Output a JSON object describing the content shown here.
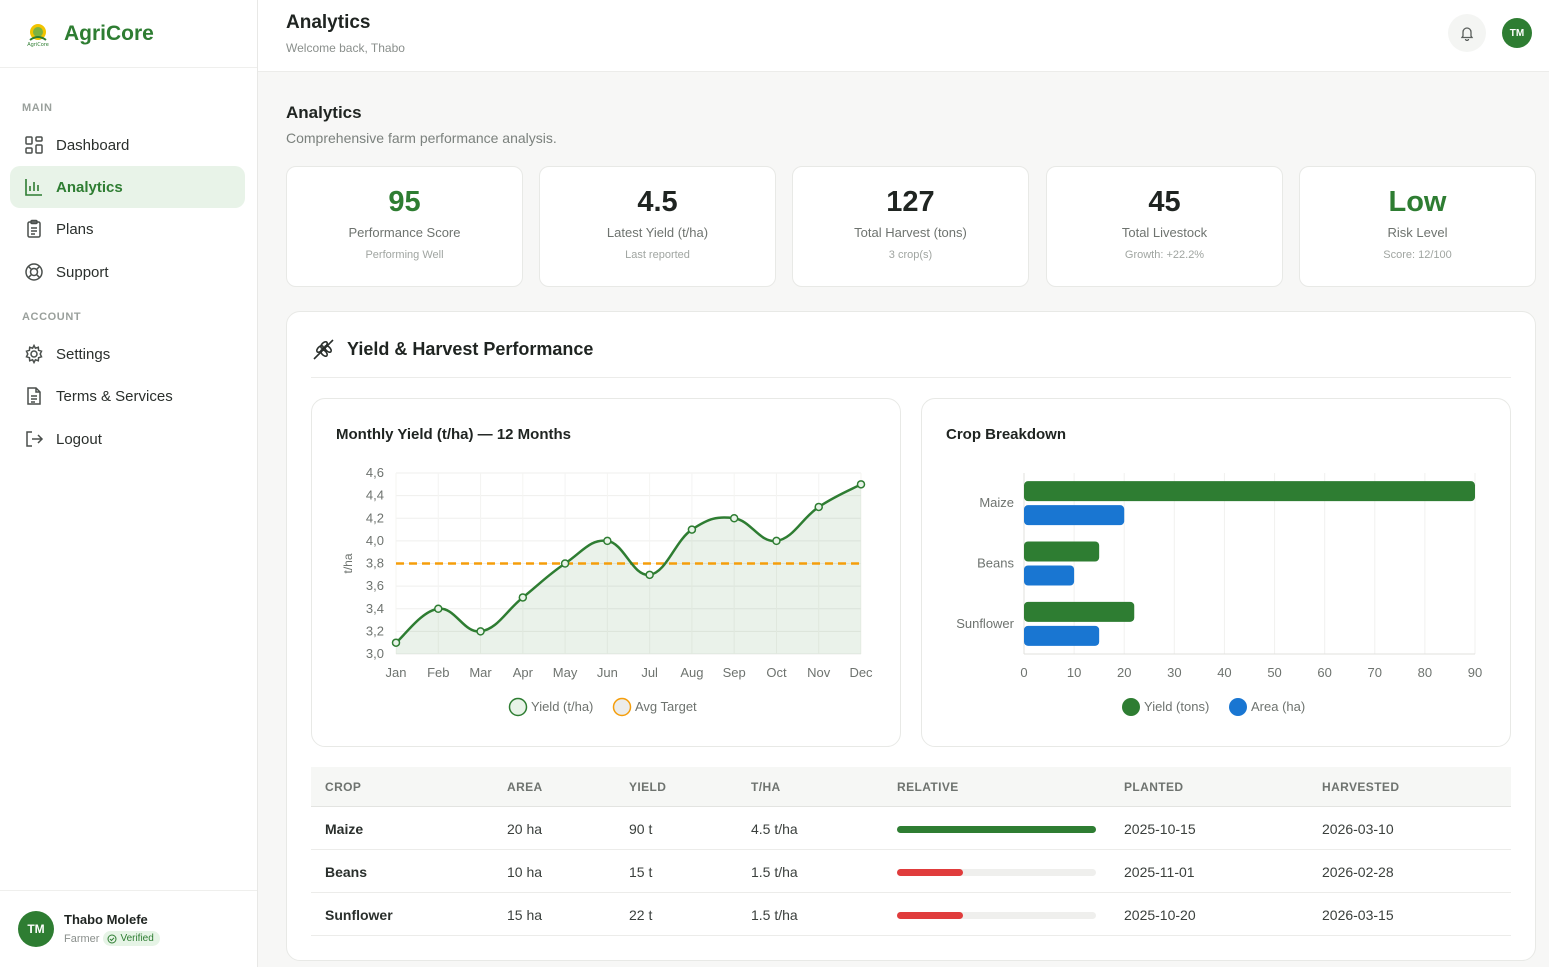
{
  "app": {
    "name": "AgriCore"
  },
  "sidebar": {
    "section_main": "MAIN",
    "section_account": "ACCOUNT",
    "items": [
      {
        "label": "Dashboard",
        "icon": "grid-icon"
      },
      {
        "label": "Analytics",
        "icon": "bar-chart-icon",
        "active": true
      },
      {
        "label": "Plans",
        "icon": "clipboard-icon"
      },
      {
        "label": "Support",
        "icon": "lifebuoy-icon"
      },
      {
        "label": "Settings",
        "icon": "gear-icon"
      },
      {
        "label": "Terms & Services",
        "icon": "document-icon"
      },
      {
        "label": "Logout",
        "icon": "logout-icon"
      }
    ],
    "user": {
      "name": "Thabo Molefe",
      "initials": "TM",
      "role": "Farmer",
      "badge": "Verified"
    }
  },
  "topbar": {
    "title": "Analytics",
    "subtitle": "Welcome back, Thabo",
    "avatar_initials": "TM"
  },
  "page": {
    "title": "Analytics",
    "subtitle": "Comprehensive farm performance analysis."
  },
  "stats": [
    {
      "value": "95",
      "label": "Performance Score",
      "note": "Performing Well",
      "accent": "#2e7d32"
    },
    {
      "value": "4.5",
      "label": "Latest Yield (t/ha)",
      "note": "Last reported"
    },
    {
      "value": "127",
      "label": "Total Harvest (tons)",
      "note": "3 crop(s)"
    },
    {
      "value": "45",
      "label": "Total Livestock",
      "note": "Growth: +22.2%"
    },
    {
      "value": "Low",
      "label": "Risk Level",
      "note": "Score: 12/100",
      "accent": "#2e7d32"
    }
  ],
  "panel": {
    "title": "Yield & Harvest Performance"
  },
  "chart_data": [
    {
      "type": "line",
      "title": "Monthly Yield (t/ha) — 12 Months",
      "ylabel": "t/ha",
      "x": [
        "Jan",
        "Feb",
        "Mar",
        "Apr",
        "May",
        "Jun",
        "Jul",
        "Aug",
        "Sep",
        "Oct",
        "Nov",
        "Dec"
      ],
      "series": [
        {
          "name": "Yield (t/ha)",
          "values": [
            3.1,
            3.4,
            3.2,
            3.5,
            3.8,
            4.0,
            3.7,
            4.1,
            4.2,
            4.0,
            4.3,
            4.5
          ],
          "color": "#2e7d32"
        },
        {
          "name": "Avg Target",
          "values": [
            3.8,
            3.8,
            3.8,
            3.8,
            3.8,
            3.8,
            3.8,
            3.8,
            3.8,
            3.8,
            3.8,
            3.8
          ],
          "color": "#f59e0b",
          "style": "dashed"
        }
      ],
      "ylim": [
        3.0,
        4.6
      ],
      "yticks": [
        "3,0",
        "3,2",
        "3,4",
        "3,6",
        "3,8",
        "4,0",
        "4,2",
        "4,4",
        "4,6"
      ],
      "legend": "bottom",
      "grid": true
    },
    {
      "type": "bar",
      "orientation": "horizontal",
      "title": "Crop Breakdown",
      "categories": [
        "Maize",
        "Beans",
        "Sunflower"
      ],
      "series": [
        {
          "name": "Yield (tons)",
          "values": [
            90,
            15,
            22
          ],
          "color": "#2e7d32"
        },
        {
          "name": "Area (ha)",
          "values": [
            20,
            10,
            15
          ],
          "color": "#1976d2"
        }
      ],
      "xlim": [
        0,
        90
      ],
      "xticks": [
        "0",
        "10",
        "20",
        "30",
        "40",
        "50",
        "60",
        "70",
        "80",
        "90"
      ],
      "legend": "bottom",
      "grid": true
    }
  ],
  "table": {
    "headers": [
      "CROP",
      "AREA",
      "YIELD",
      "T/HA",
      "RELATIVE",
      "PLANTED",
      "HARVESTED"
    ],
    "rows": [
      {
        "crop": "Maize",
        "area": "20 ha",
        "yield": "90 t",
        "tha": "4.5 t/ha",
        "relative": 1.0,
        "relative_color": "#2e7d32",
        "planted": "2025-10-15",
        "harvested": "2026-03-10"
      },
      {
        "crop": "Beans",
        "area": "10 ha",
        "yield": "15 t",
        "tha": "1.5 t/ha",
        "relative": 0.33,
        "relative_color": "#e03c3c",
        "planted": "2025-11-01",
        "harvested": "2026-02-28"
      },
      {
        "crop": "Sunflower",
        "area": "15 ha",
        "yield": "22 t",
        "tha": "1.5 t/ha",
        "relative": 0.33,
        "relative_color": "#e03c3c",
        "planted": "2025-10-20",
        "harvested": "2026-03-15"
      }
    ]
  }
}
